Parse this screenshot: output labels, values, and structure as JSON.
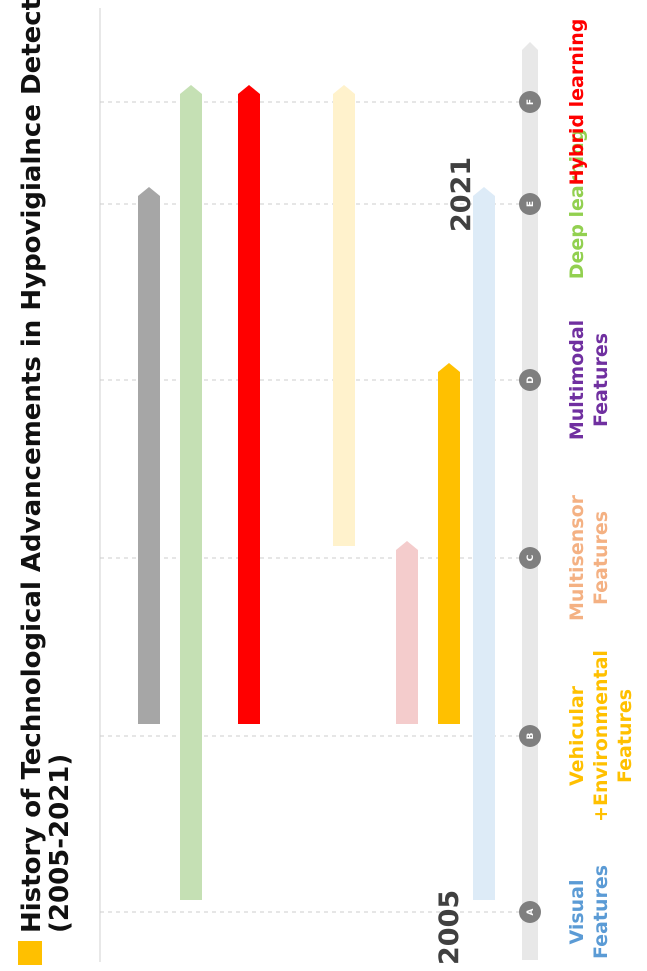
{
  "title_line1": "History of Technological Advancements in Hypovigialnce Detection",
  "title_line2": "(2005-2021)",
  "accent": "#FFC000",
  "year_start": "2005",
  "year_end": "2021",
  "milestones": [
    {
      "letter": "A",
      "label_lines": [
        "Visual",
        "Features"
      ],
      "color": "#5B9BD5"
    },
    {
      "letter": "B",
      "label_lines": [
        "Vehicular",
        "+Environmental",
        "Features"
      ],
      "color": "#FFC000"
    },
    {
      "letter": "C",
      "label_lines": [
        "Multisensor",
        "Features"
      ],
      "color": "#F4B183"
    },
    {
      "letter": "D",
      "label_lines": [
        "Multimodal",
        "Features"
      ],
      "color": "#7030A0"
    },
    {
      "letter": "E",
      "label_lines": [
        "Deep learning"
      ],
      "color": "#92D050"
    },
    {
      "letter": "F",
      "label_lines": [
        "Hybrid learning"
      ],
      "color": "#FF0000"
    }
  ],
  "bars": [
    {
      "color": "#A6A6A6",
      "from": "B",
      "to": "E"
    },
    {
      "color": "#C5E0B4",
      "from": "A",
      "to": "F"
    },
    {
      "color": "#FF0000",
      "from": "B",
      "to": "F"
    },
    {
      "color": "#FFF2CC",
      "from": "C",
      "to": "F"
    },
    {
      "color": "#F4CCCC",
      "from": "B",
      "to": "C"
    },
    {
      "color": "#FFC000",
      "from": "B",
      "to": "D"
    },
    {
      "color": "#DDEBF7",
      "from": "A",
      "to": "E"
    }
  ]
}
